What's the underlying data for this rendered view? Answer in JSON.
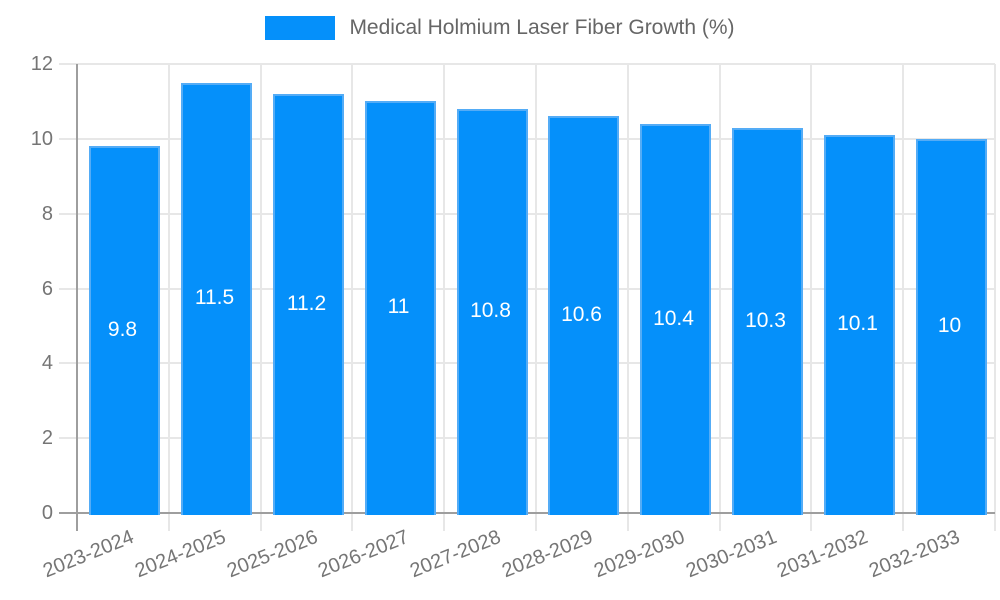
{
  "legend": {
    "label": "Medical Holmium Laser Fiber Growth (%)"
  },
  "chart_data": {
    "type": "bar",
    "title": "Medical Holmium Laser Fiber Growth (%)",
    "categories": [
      "2023-2024",
      "2024-2025",
      "2025-2026",
      "2026-2027",
      "2027-2028",
      "2028-2029",
      "2029-2030",
      "2030-2031",
      "2031-2032",
      "2032-2033"
    ],
    "values": [
      9.8,
      11.5,
      11.2,
      11,
      10.8,
      10.6,
      10.4,
      10.3,
      10.1,
      10
    ],
    "value_labels": [
      "9.8",
      "11.5",
      "11.2",
      "11",
      "10.8",
      "10.6",
      "10.4",
      "10.3",
      "10.1",
      "10"
    ],
    "xlabel": "",
    "ylabel": "",
    "ylim": [
      0,
      12
    ],
    "yticks": [
      0,
      2,
      4,
      6,
      8,
      10,
      12
    ],
    "grid": true,
    "legend_position": "top",
    "value_label_position": "center-of-bar",
    "colors": {
      "bar_fill": "#0590FA",
      "bar_border": "#54ACF6",
      "grid": "#E7E7E7",
      "axis": "#9E9E9E",
      "axis_text": "#757575",
      "legend_text": "#666666",
      "value_text": "#FFFFFF",
      "background": "#FFFFFF"
    }
  }
}
